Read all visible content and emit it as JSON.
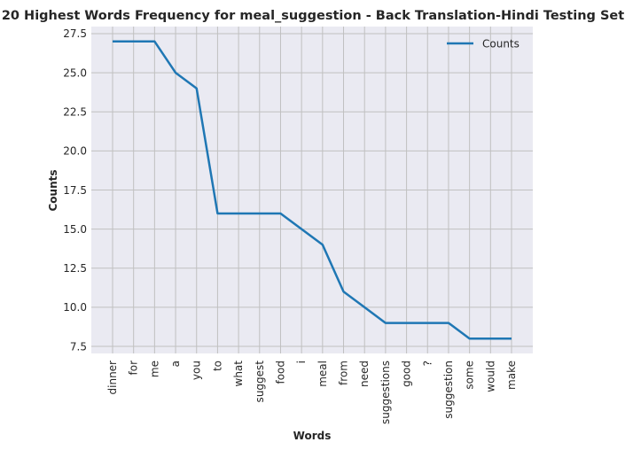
{
  "chart_data": {
    "type": "line",
    "title": "20 Highest Words Frequency for meal_suggestion - Back Translation-Hindi Testing Set",
    "xlabel": "Words",
    "ylabel": "Counts",
    "categories": [
      "dinner",
      "for",
      "me",
      "a",
      "you",
      "to",
      "what",
      "suggest",
      "food",
      "i",
      "meal",
      "from",
      "need",
      "suggestions",
      "good",
      "?",
      "suggestion",
      "some",
      "would",
      "make"
    ],
    "series": [
      {
        "name": "Counts",
        "values": [
          27,
          27,
          27,
          25,
          24,
          16,
          16,
          16,
          16,
          15,
          14,
          11,
          10,
          9,
          9,
          9,
          9,
          8,
          8,
          8
        ]
      }
    ],
    "ylim": [
      7.05,
      27.95
    ],
    "yticks": [
      7.5,
      10.0,
      12.5,
      15.0,
      17.5,
      20.0,
      22.5,
      25.0,
      27.5
    ],
    "ytick_labels": [
      "7.5",
      "10.0",
      "12.5",
      "15.0",
      "17.5",
      "20.0",
      "22.5",
      "25.0",
      "27.5"
    ],
    "grid": true,
    "legend_position": "top-right",
    "colors": {
      "line": "#1f77b4",
      "plot_background": "#eaeaf2",
      "grid": "#c0c0c0"
    }
  }
}
